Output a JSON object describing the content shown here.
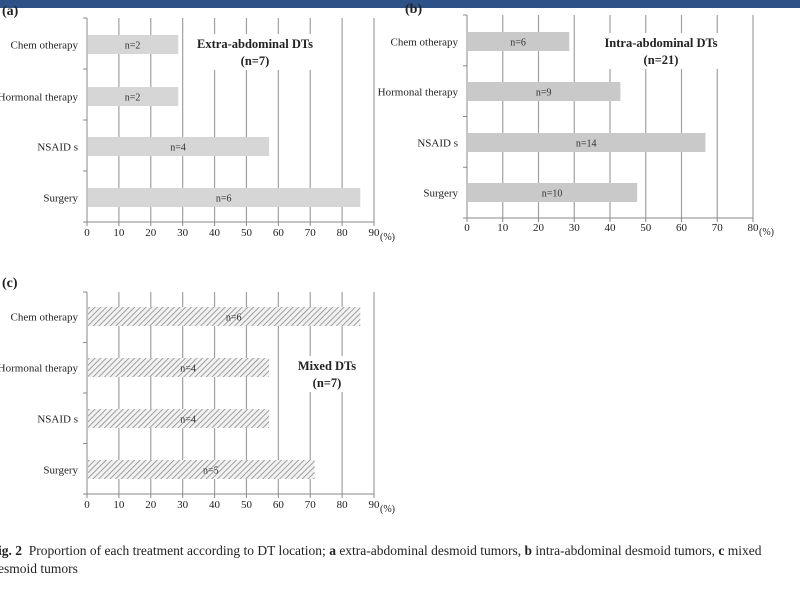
{
  "colors": {
    "header_bar": "#2c5288",
    "bar_fill": "#d4d4d4",
    "bar_fill_b": "#c8c8c8",
    "hatch": "#8a8a8a",
    "grid": "#9a9a9a",
    "text": "#222222"
  },
  "chart_data": [
    {
      "panel": "(a)",
      "type": "bar",
      "orientation": "horizontal",
      "title": "Extra-abdominal DTs",
      "subtitle": "(n=7)",
      "categories": [
        "Chem otherapy",
        "Hormonal therapy",
        "NSAID s",
        "Surgery"
      ],
      "values": [
        28.6,
        28.6,
        57.1,
        85.7
      ],
      "labels": [
        "n=2",
        "n=2",
        "n=4",
        "n=6"
      ],
      "xlim": [
        0,
        90
      ],
      "xticks": [
        "0",
        "10",
        "20",
        "30",
        "40",
        "50",
        "60",
        "70",
        "80",
        "90"
      ],
      "xunit": "(%)",
      "grid": true,
      "fill": "solid"
    },
    {
      "panel": "(b)",
      "type": "bar",
      "orientation": "horizontal",
      "title": "Intra-abdominal DTs",
      "subtitle": "(n=21)",
      "categories": [
        "Chem otherapy",
        "Hormonal therapy",
        "NSAID s",
        "Surgery"
      ],
      "values": [
        28.6,
        42.9,
        66.7,
        47.6
      ],
      "labels": [
        "n=6",
        "n=9",
        "n=14",
        "n=10"
      ],
      "xlim": [
        0,
        80
      ],
      "xticks": [
        "0",
        "10",
        "20",
        "30",
        "40",
        "50",
        "60",
        "70",
        "80"
      ],
      "xunit": "(%)",
      "grid": true,
      "fill": "solid"
    },
    {
      "panel": "(c)",
      "type": "bar",
      "orientation": "horizontal",
      "title": "Mixed DTs",
      "subtitle": "(n=7)",
      "categories": [
        "Chem otherapy",
        "Hormonal therapy",
        "NSAID s",
        "Surgery"
      ],
      "values": [
        85.7,
        57.1,
        57.1,
        71.4
      ],
      "labels": [
        "n=6",
        "n=4",
        "n=4",
        "n=5"
      ],
      "xlim": [
        0,
        90
      ],
      "xticks": [
        "0",
        "10",
        "20",
        "30",
        "40",
        "50",
        "60",
        "70",
        "80",
        "90"
      ],
      "xunit": "(%)",
      "grid": true,
      "fill": "hatched"
    }
  ],
  "caption": {
    "fig_label": "ig. 2",
    "line1_text1": "Proportion of each treatment according to DT location; ",
    "a": "a",
    "line1_text2": " extra-abdominal desmoid tumors, ",
    "b": "b",
    "line1_text3": " intra-abdominal desmoid tumors, ",
    "c": "c",
    "line1_text4": " mixed",
    "line2": "esmoid tumors"
  }
}
